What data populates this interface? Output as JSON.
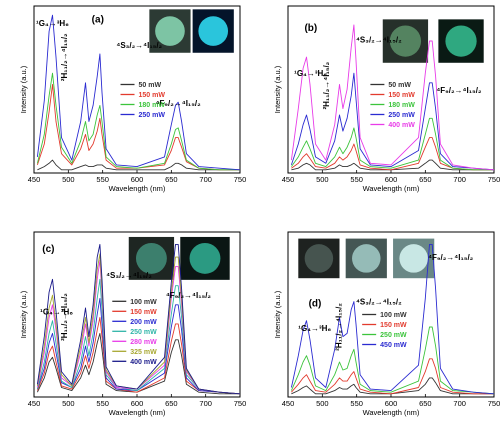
{
  "chart_data": [
    {
      "panel": "(a)",
      "type": "line",
      "xlabel": "Wavelength (nm)",
      "ylabel": "Intensity (a.u.)",
      "xlim": [
        450,
        750
      ],
      "xticks": [
        "450",
        "500",
        "550",
        "600",
        "650",
        "700",
        "750"
      ],
      "annotations": [
        "¹G₄→³H₆",
        "²H₁₁/₂→⁴I₁₅/₂",
        "⁴S₃/₂→⁴I₁₅/₂",
        "⁴F₉/₂→⁴I₁₅/₂"
      ],
      "x": [
        455,
        465,
        472,
        477,
        482,
        490,
        505,
        518,
        525,
        530,
        536,
        542,
        546,
        549,
        555,
        570,
        600,
        640,
        650,
        656,
        660,
        665,
        672,
        690,
        720,
        750
      ],
      "series": [
        {
          "name": "50 mW",
          "color": "#333333",
          "values": [
            0.02,
            0.04,
            0.06,
            0.08,
            0.05,
            0.02,
            0.02,
            0.04,
            0.05,
            0.04,
            0.04,
            0.05,
            0.05,
            0.05,
            0.03,
            0.02,
            0.02,
            0.02,
            0.04,
            0.06,
            0.06,
            0.05,
            0.03,
            0.02,
            0.02,
            0.02
          ]
        },
        {
          "name": "150 mW",
          "color": "#e23b2e",
          "values": [
            0.05,
            0.18,
            0.38,
            0.55,
            0.32,
            0.12,
            0.05,
            0.15,
            0.24,
            0.14,
            0.18,
            0.26,
            0.34,
            0.24,
            0.08,
            0.03,
            0.03,
            0.05,
            0.14,
            0.22,
            0.22,
            0.16,
            0.07,
            0.03,
            0.02,
            0.02
          ]
        },
        {
          "name": "180 mW",
          "color": "#3cc43c",
          "values": [
            0.06,
            0.24,
            0.48,
            0.62,
            0.42,
            0.16,
            0.06,
            0.2,
            0.32,
            0.2,
            0.24,
            0.36,
            0.42,
            0.32,
            0.1,
            0.04,
            0.03,
            0.06,
            0.18,
            0.27,
            0.28,
            0.2,
            0.08,
            0.03,
            0.02,
            0.02
          ]
        },
        {
          "name": "250 mW",
          "color": "#2b2bd1",
          "values": [
            0.1,
            0.45,
            0.88,
            0.98,
            0.72,
            0.22,
            0.08,
            0.32,
            0.56,
            0.32,
            0.42,
            0.6,
            0.74,
            0.5,
            0.15,
            0.05,
            0.04,
            0.1,
            0.3,
            0.42,
            0.44,
            0.32,
            0.12,
            0.04,
            0.03,
            0.02
          ]
        }
      ]
    },
    {
      "panel": "(b)",
      "type": "line",
      "xlabel": "Wavelength (nm)",
      "ylabel": "Intensity (a.u.)",
      "xlim": [
        450,
        750
      ],
      "xticks": [
        "450",
        "500",
        "550",
        "600",
        "650",
        "700",
        "750"
      ],
      "annotations": [
        "¹G₄→³H₆",
        "²H₁₁/₂→⁴I₁₅/₂",
        "⁴S₃/₂→⁴I₁₅/₂",
        "⁴F₉/₂→⁴I₁₅/₂"
      ],
      "x": [
        455,
        465,
        472,
        477,
        482,
        490,
        505,
        518,
        525,
        530,
        536,
        542,
        546,
        549,
        555,
        570,
        600,
        640,
        650,
        656,
        660,
        665,
        672,
        690,
        720,
        750
      ],
      "series": [
        {
          "name": "50 mW",
          "color": "#333333",
          "values": [
            0.02,
            0.03,
            0.05,
            0.06,
            0.05,
            0.02,
            0.02,
            0.03,
            0.05,
            0.04,
            0.04,
            0.05,
            0.06,
            0.05,
            0.03,
            0.02,
            0.02,
            0.03,
            0.06,
            0.08,
            0.08,
            0.06,
            0.03,
            0.02,
            0.02,
            0.02
          ]
        },
        {
          "name": "150 mW",
          "color": "#e23b2e",
          "values": [
            0.03,
            0.06,
            0.1,
            0.12,
            0.09,
            0.04,
            0.03,
            0.06,
            0.1,
            0.08,
            0.1,
            0.14,
            0.18,
            0.14,
            0.05,
            0.03,
            0.02,
            0.06,
            0.16,
            0.22,
            0.22,
            0.16,
            0.06,
            0.03,
            0.02,
            0.02
          ]
        },
        {
          "name": "180 mW",
          "color": "#3cc43c",
          "values": [
            0.04,
            0.1,
            0.16,
            0.2,
            0.15,
            0.06,
            0.04,
            0.1,
            0.16,
            0.12,
            0.16,
            0.22,
            0.28,
            0.22,
            0.08,
            0.04,
            0.03,
            0.08,
            0.24,
            0.34,
            0.34,
            0.24,
            0.08,
            0.03,
            0.02,
            0.02
          ]
        },
        {
          "name": "250 mW",
          "color": "#2b2bd1",
          "values": [
            0.05,
            0.18,
            0.3,
            0.36,
            0.27,
            0.1,
            0.06,
            0.2,
            0.36,
            0.26,
            0.34,
            0.48,
            0.62,
            0.46,
            0.15,
            0.05,
            0.04,
            0.14,
            0.4,
            0.56,
            0.56,
            0.4,
            0.12,
            0.04,
            0.03,
            0.02
          ]
        },
        {
          "name": "400 mW",
          "color": "#e83ce8",
          "values": [
            0.08,
            0.4,
            0.65,
            0.72,
            0.55,
            0.18,
            0.08,
            0.3,
            0.55,
            0.4,
            0.52,
            0.78,
            0.92,
            0.7,
            0.22,
            0.06,
            0.05,
            0.22,
            0.62,
            0.82,
            0.82,
            0.6,
            0.18,
            0.05,
            0.03,
            0.02
          ]
        }
      ]
    },
    {
      "panel": "(c)",
      "type": "line",
      "xlabel": "Wavelength (nm)",
      "ylabel": "Intensity (a.u.)",
      "xlim": [
        450,
        750
      ],
      "xticks": [
        "450",
        "500",
        "550",
        "600",
        "650",
        "700",
        "750"
      ],
      "annotations": [
        "¹G₄→³H₆",
        "²H₁₁/₂→⁴I₁₅/₂",
        "⁴S₃/₂→⁴I₁₅/₂",
        "⁴F₉/₂→⁴I₁₅/₂"
      ],
      "x": [
        455,
        465,
        472,
        477,
        482,
        490,
        505,
        518,
        525,
        530,
        536,
        542,
        546,
        549,
        555,
        570,
        600,
        640,
        650,
        656,
        660,
        665,
        672,
        690,
        720,
        750
      ],
      "series": [
        {
          "name": "100 mW",
          "color": "#333333",
          "values": [
            0.03,
            0.12,
            0.22,
            0.25,
            0.18,
            0.06,
            0.04,
            0.12,
            0.2,
            0.14,
            0.22,
            0.34,
            0.4,
            0.3,
            0.08,
            0.04,
            0.03,
            0.1,
            0.28,
            0.36,
            0.36,
            0.26,
            0.08,
            0.03,
            0.02,
            0.02
          ]
        },
        {
          "name": "150 mW",
          "color": "#e23b2e",
          "values": [
            0.04,
            0.15,
            0.28,
            0.32,
            0.22,
            0.07,
            0.05,
            0.15,
            0.26,
            0.18,
            0.28,
            0.42,
            0.5,
            0.38,
            0.1,
            0.05,
            0.03,
            0.12,
            0.35,
            0.46,
            0.46,
            0.33,
            0.1,
            0.04,
            0.03,
            0.02
          ]
        },
        {
          "name": "200 mW",
          "color": "#2b2bd1",
          "values": [
            0.05,
            0.18,
            0.34,
            0.4,
            0.28,
            0.09,
            0.06,
            0.18,
            0.32,
            0.22,
            0.34,
            0.52,
            0.62,
            0.46,
            0.12,
            0.05,
            0.04,
            0.15,
            0.44,
            0.58,
            0.58,
            0.42,
            0.12,
            0.04,
            0.03,
            0.02
          ]
        },
        {
          "name": "250 mW",
          "color": "#2fb5a8",
          "values": [
            0.05,
            0.22,
            0.4,
            0.48,
            0.34,
            0.1,
            0.06,
            0.22,
            0.38,
            0.26,
            0.4,
            0.62,
            0.74,
            0.55,
            0.14,
            0.06,
            0.04,
            0.18,
            0.52,
            0.7,
            0.7,
            0.5,
            0.14,
            0.05,
            0.03,
            0.02
          ]
        },
        {
          "name": "280 mW",
          "color": "#e83ce8",
          "values": [
            0.06,
            0.28,
            0.5,
            0.58,
            0.42,
            0.12,
            0.07,
            0.28,
            0.46,
            0.32,
            0.48,
            0.74,
            0.86,
            0.64,
            0.16,
            0.06,
            0.05,
            0.2,
            0.62,
            0.82,
            0.82,
            0.58,
            0.16,
            0.05,
            0.03,
            0.02
          ]
        },
        {
          "name": "325 mW",
          "color": "#a8a832",
          "values": [
            0.07,
            0.32,
            0.56,
            0.64,
            0.46,
            0.14,
            0.07,
            0.32,
            0.5,
            0.34,
            0.52,
            0.8,
            0.9,
            0.68,
            0.17,
            0.07,
            0.05,
            0.22,
            0.66,
            0.88,
            0.88,
            0.62,
            0.17,
            0.05,
            0.03,
            0.02
          ]
        },
        {
          "name": "400 mW",
          "color": "#1a1a8a",
          "values": [
            0.08,
            0.38,
            0.66,
            0.74,
            0.54,
            0.16,
            0.08,
            0.36,
            0.56,
            0.38,
            0.58,
            0.88,
            0.96,
            0.74,
            0.19,
            0.07,
            0.05,
            0.25,
            0.72,
            0.96,
            0.96,
            0.68,
            0.18,
            0.05,
            0.03,
            0.02
          ]
        }
      ]
    },
    {
      "panel": "(d)",
      "type": "line",
      "xlabel": "Wavelength (nm)",
      "ylabel": "Intensity (a.u.)",
      "xlim": [
        450,
        750
      ],
      "xticks": [
        "450",
        "500",
        "550",
        "600",
        "650",
        "700",
        "750"
      ],
      "annotations": [
        "¹G₄→³H₆",
        "²H₁₁/₂→⁴I₁₅/₂",
        "⁴S₃/₂→⁴I₁₅/₂",
        "⁴F₉/₂→⁴I₁₅/₂"
      ],
      "x": [
        455,
        465,
        472,
        477,
        482,
        490,
        505,
        518,
        525,
        530,
        536,
        542,
        546,
        549,
        555,
        570,
        600,
        640,
        650,
        656,
        660,
        665,
        672,
        690,
        720,
        750
      ],
      "series": [
        {
          "name": "100 mW",
          "color": "#333333",
          "values": [
            0.02,
            0.04,
            0.06,
            0.07,
            0.05,
            0.02,
            0.02,
            0.04,
            0.06,
            0.05,
            0.05,
            0.07,
            0.08,
            0.06,
            0.03,
            0.02,
            0.02,
            0.04,
            0.08,
            0.12,
            0.12,
            0.09,
            0.04,
            0.02,
            0.02,
            0.02
          ]
        },
        {
          "name": "150 mW",
          "color": "#e23b2e",
          "values": [
            0.03,
            0.08,
            0.12,
            0.14,
            0.1,
            0.04,
            0.03,
            0.08,
            0.12,
            0.1,
            0.1,
            0.14,
            0.16,
            0.12,
            0.05,
            0.03,
            0.02,
            0.06,
            0.16,
            0.24,
            0.24,
            0.18,
            0.06,
            0.03,
            0.02,
            0.02
          ]
        },
        {
          "name": "250 mW",
          "color": "#3cc43c",
          "values": [
            0.04,
            0.14,
            0.22,
            0.26,
            0.2,
            0.07,
            0.04,
            0.14,
            0.22,
            0.17,
            0.18,
            0.26,
            0.3,
            0.22,
            0.08,
            0.04,
            0.03,
            0.1,
            0.3,
            0.44,
            0.44,
            0.32,
            0.1,
            0.04,
            0.03,
            0.02
          ]
        },
        {
          "name": "450 mW",
          "color": "#2b2bd1",
          "values": [
            0.06,
            0.26,
            0.42,
            0.48,
            0.36,
            0.12,
            0.06,
            0.3,
            0.5,
            0.38,
            0.4,
            0.55,
            0.6,
            0.46,
            0.14,
            0.05,
            0.04,
            0.2,
            0.62,
            0.96,
            0.96,
            0.68,
            0.18,
            0.05,
            0.03,
            0.02
          ]
        }
      ]
    }
  ]
}
